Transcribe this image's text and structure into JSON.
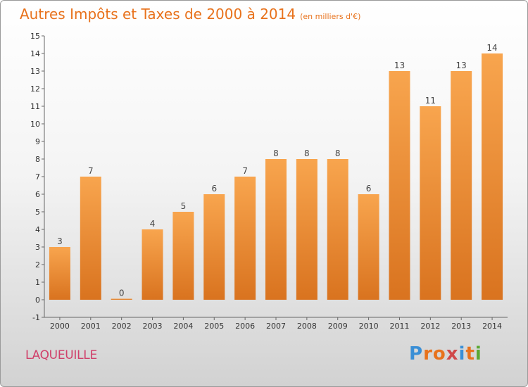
{
  "title": "Autres Impôts et Taxes de 2000 à 2014",
  "unit": "(en milliers d'€)",
  "commune": "LAQUEUILLE",
  "brand": "Proxiti",
  "colors": {
    "accent": "#e8721c",
    "bar_light": "#f8a54e",
    "bar_dark": "#d9731f",
    "commune": "#d0406a",
    "brand_letters": [
      "#3a8fd6",
      "#e8721c",
      "#e8721c",
      "#d04848",
      "#3a8fd6",
      "#e8721c",
      "#5aa832"
    ]
  },
  "chart_data": {
    "type": "bar",
    "categories": [
      "2000",
      "2001",
      "2002",
      "2003",
      "2004",
      "2005",
      "2006",
      "2007",
      "2008",
      "2009",
      "2010",
      "2011",
      "2012",
      "2013",
      "2014"
    ],
    "values": [
      3,
      7,
      0,
      4,
      5,
      6,
      7,
      8,
      8,
      8,
      6,
      13,
      11,
      13,
      14
    ],
    "data_labels": [
      "3",
      "7",
      "0",
      "4",
      "5",
      "6",
      "7",
      "8",
      "8",
      "8",
      "6",
      "13",
      "11",
      "13",
      "14"
    ],
    "yticks": [
      "-1",
      "0",
      "1",
      "2",
      "3",
      "4",
      "5",
      "6",
      "7",
      "8",
      "9",
      "10",
      "11",
      "12",
      "13",
      "14",
      "15"
    ],
    "ylim": [
      -1,
      15
    ],
    "grid": false
  }
}
